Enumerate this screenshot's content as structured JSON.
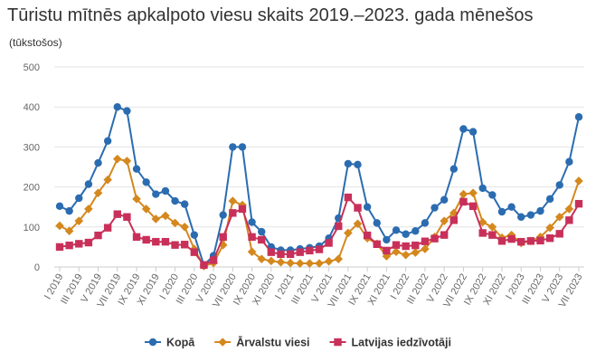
{
  "chart_data": {
    "type": "line",
    "title": "Tūristu mītnēs apkalpoto viesu skaits 2019.–2023. gada mēnešos",
    "subtitle": "(tūkstošos)",
    "ylim": [
      0,
      500
    ],
    "y_ticks": [
      "0",
      "100",
      "200",
      "300",
      "400",
      "500"
    ],
    "grid": true,
    "legend_position": "bottom",
    "x": [
      "I 2019",
      "II 2019",
      "III 2019",
      "IV 2019",
      "V 2019",
      "VI 2019",
      "VII 2019",
      "VIII 2019",
      "IX 2019",
      "X 2019",
      "XI 2019",
      "XII 2019",
      "I 2020",
      "II 2020",
      "III 2020",
      "IV 2020",
      "V 2020",
      "VI 2020",
      "VII 2020",
      "VIII 2020",
      "IX 2020",
      "X 2020",
      "XI 2020",
      "XII 2020",
      "I 2021",
      "II 2021",
      "III 2021",
      "IV 2021",
      "V 2021",
      "VI 2021",
      "VII 2021",
      "VIII 2021",
      "IX 2021",
      "X 2021",
      "XI 2021",
      "XII 2021",
      "I 2022",
      "II 2022",
      "III 2022",
      "IV 2022",
      "V 2022",
      "VI 2022",
      "VII 2022",
      "VIII 2022",
      "IX 2022",
      "X 2022",
      "XI 2022",
      "XII 2022",
      "I 2023",
      "II 2023",
      "III 2023",
      "IV 2023",
      "V 2023",
      "VI 2023",
      "VII 2023"
    ],
    "x_tick_labels": [
      "I 2019",
      "III 2019",
      "V 2019",
      "VII 2019",
      "IX 2019",
      "XI 2019",
      "I 2020",
      "III 2020",
      "V 2020",
      "VII 2020",
      "IX 2020",
      "XI 2020",
      "I 2021",
      "III 2021",
      "V 2021",
      "VII 2021",
      "IX 2021",
      "XI 2021",
      "I 2022",
      "III 2022",
      "V 2022",
      "VII 2022",
      "IX 2022",
      "XI 2022",
      "I 2023",
      "III 2023",
      "V 2023",
      "VII 2023"
    ],
    "series": [
      {
        "name": "Kopā",
        "color": "#2b6cb0",
        "marker": "circle",
        "values": [
          152,
          140,
          172,
          207,
          260,
          315,
          400,
          390,
          245,
          212,
          182,
          190,
          165,
          157,
          80,
          5,
          28,
          130,
          300,
          300,
          112,
          88,
          50,
          42,
          42,
          45,
          48,
          52,
          72,
          122,
          258,
          256,
          150,
          110,
          68,
          92,
          82,
          90,
          110,
          148,
          168,
          245,
          345,
          338,
          197,
          180,
          138,
          150,
          125,
          130,
          140,
          170,
          205,
          263,
          375
        ]
      },
      {
        "name": "Ārvalstu viesi",
        "color": "#d4881e",
        "marker": "diamond",
        "values": [
          103,
          90,
          115,
          145,
          185,
          218,
          270,
          265,
          170,
          145,
          120,
          128,
          110,
          100,
          45,
          2,
          10,
          55,
          165,
          155,
          38,
          20,
          15,
          12,
          10,
          9,
          9,
          9,
          14,
          20,
          85,
          108,
          72,
          58,
          27,
          38,
          30,
          36,
          45,
          75,
          115,
          135,
          182,
          185,
          112,
          100,
          73,
          80,
          60,
          65,
          75,
          98,
          125,
          145,
          215
        ]
      },
      {
        "name": "Latvijas iedzīvotāji",
        "color": "#c8305a",
        "marker": "square",
        "values": [
          50,
          54,
          58,
          61,
          79,
          98,
          132,
          125,
          75,
          68,
          63,
          63,
          55,
          56,
          37,
          5,
          17,
          75,
          135,
          145,
          75,
          68,
          37,
          32,
          32,
          37,
          41,
          44,
          60,
          102,
          174,
          148,
          79,
          57,
          41,
          55,
          52,
          54,
          64,
          71,
          80,
          117,
          163,
          152,
          85,
          80,
          65,
          70,
          63,
          65,
          66,
          72,
          83,
          117,
          158
        ]
      }
    ]
  }
}
